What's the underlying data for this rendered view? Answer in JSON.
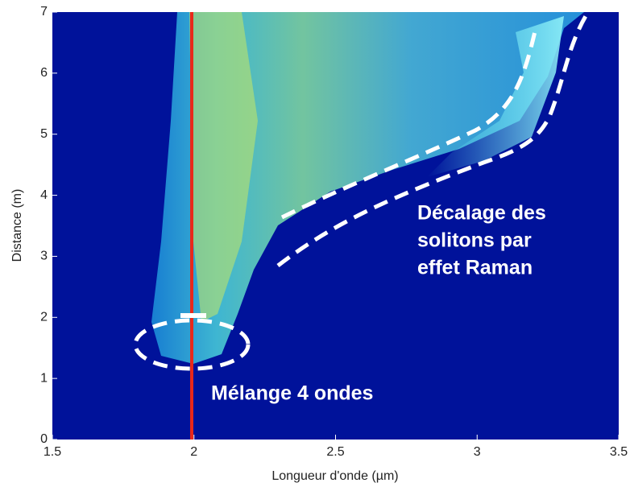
{
  "chart_data": {
    "type": "heatmap",
    "x_label": "Longueur d'onde (µm)",
    "y_label": "Distance (m)",
    "xlim": [
      1.5,
      3.5
    ],
    "xticks": [
      1.5,
      2,
      2.5,
      3,
      3.5
    ],
    "ylim": [
      0,
      7
    ],
    "yticks": [
      0,
      1,
      2,
      3,
      4,
      5,
      6,
      7
    ],
    "background_color": "#00129a",
    "annotations": [
      {
        "lines": [
          "Décalage des",
          "solitons par",
          "effet Raman"
        ]
      },
      {
        "lines": [
          "Mélange 4 ondes"
        ]
      }
    ]
  }
}
